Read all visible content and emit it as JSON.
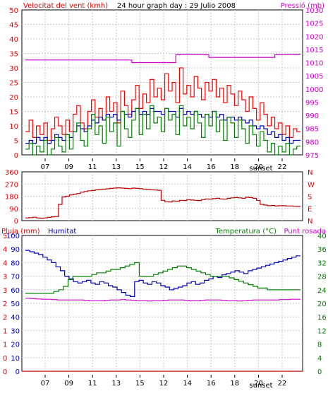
{
  "chart_data": [
    {
      "type": "line",
      "title": "24 hour graph day : 29 Julio 2008",
      "left_label": "Velocitat del vent (kmh)",
      "right_label": "Pressió (mb)",
      "left_ticks": [
        "0",
        "5",
        "10",
        "15",
        "20",
        "25",
        "30",
        "35",
        "40",
        "45",
        "50"
      ],
      "right_ticks": [
        "975",
        "980",
        "985",
        "990",
        "995",
        "1000",
        "1005",
        "1010",
        "1015",
        "1020",
        "1025",
        "1030"
      ],
      "x_ticks": [
        "07",
        "09",
        "11",
        "13",
        "15",
        "12",
        "14",
        "16",
        "18",
        "20",
        "22"
      ],
      "x_annotation": "sunset",
      "left_range": [
        0,
        50
      ],
      "right_range": [
        975,
        1030
      ],
      "colors": {
        "gust": "#ff0000",
        "average": "#0000c0",
        "wind": "#008000",
        "pressure": "#d000d0"
      },
      "series": [
        {
          "key": "gust",
          "values": [
            8,
            12,
            6,
            10,
            7,
            11,
            5,
            9,
            13,
            10,
            7,
            12,
            8,
            14,
            17,
            11,
            9,
            15,
            19,
            13,
            16,
            12,
            20,
            15,
            18,
            11,
            22,
            17,
            14,
            19,
            24,
            16,
            21,
            18,
            26,
            20,
            23,
            19,
            28,
            22,
            25,
            18,
            30,
            21,
            24,
            20,
            27,
            23,
            19,
            25,
            22,
            26,
            20,
            23,
            18,
            24,
            21,
            17,
            22,
            19,
            15,
            20,
            16,
            12,
            18,
            14,
            10,
            13,
            9,
            11,
            7,
            10,
            6,
            9,
            8
          ]
        },
        {
          "key": "average",
          "values": [
            4,
            5,
            4,
            6,
            5,
            6,
            4,
            5,
            7,
            6,
            5,
            7,
            6,
            8,
            10,
            9,
            8,
            10,
            12,
            11,
            13,
            12,
            14,
            13,
            14,
            12,
            15,
            14,
            13,
            15,
            16,
            14,
            15,
            14,
            16,
            15,
            15,
            14,
            16,
            15,
            15,
            13,
            16,
            14,
            15,
            14,
            15,
            14,
            13,
            14,
            13,
            15,
            13,
            14,
            12,
            13,
            13,
            12,
            13,
            12,
            11,
            12,
            10,
            9,
            10,
            9,
            7,
            8,
            6,
            7,
            5,
            6,
            4,
            5,
            5
          ]
        },
        {
          "key": "wind",
          "values": [
            2,
            4,
            0,
            3,
            1,
            5,
            0,
            2,
            6,
            3,
            1,
            7,
            2,
            8,
            11,
            5,
            3,
            9,
            14,
            7,
            10,
            4,
            13,
            8,
            11,
            3,
            15,
            9,
            6,
            12,
            16,
            7,
            14,
            9,
            17,
            11,
            13,
            8,
            16,
            12,
            14,
            7,
            17,
            10,
            13,
            9,
            15,
            11,
            6,
            14,
            10,
            15,
            8,
            12,
            5,
            13,
            11,
            6,
            12,
            9,
            4,
            10,
            7,
            3,
            8,
            5,
            1,
            4,
            0,
            3,
            1,
            4,
            0,
            2,
            3
          ]
        },
        {
          "key": "pressure",
          "values": [
            1011,
            1011,
            1011,
            1011,
            1011,
            1011,
            1011,
            1011,
            1011,
            1011,
            1011,
            1011,
            1011,
            1011,
            1011,
            1011,
            1011,
            1011,
            1011,
            1011,
            1011,
            1011,
            1011,
            1011,
            1011,
            1011,
            1011,
            1011,
            1011,
            1010,
            1010,
            1010,
            1010,
            1010,
            1010,
            1010,
            1010,
            1010,
            1010,
            1010,
            1010,
            1013,
            1013,
            1013,
            1013,
            1013,
            1013,
            1013,
            1013,
            1013,
            1012,
            1012,
            1012,
            1012,
            1012,
            1012,
            1012,
            1012,
            1012,
            1012,
            1012,
            1012,
            1012,
            1012,
            1012,
            1012,
            1012,
            1012,
            1013,
            1013,
            1013,
            1013,
            1013,
            1013,
            1013
          ]
        }
      ]
    },
    {
      "type": "line",
      "left_ticks": [
        "0",
        "90",
        "180",
        "270",
        "360"
      ],
      "right_ticks": [
        "N",
        "E",
        "S",
        "W",
        "N"
      ],
      "range": [
        0,
        360
      ],
      "color": "#c00000",
      "values": [
        20,
        22,
        25,
        20,
        18,
        20,
        24,
        28,
        30,
        120,
        175,
        180,
        190,
        195,
        200,
        210,
        215,
        220,
        222,
        228,
        230,
        232,
        235,
        238,
        240,
        242,
        240,
        238,
        236,
        240,
        238,
        236,
        232,
        230,
        228,
        226,
        224,
        150,
        140,
        138,
        145,
        142,
        150,
        148,
        155,
        152,
        150,
        148,
        155,
        160,
        158,
        162,
        165,
        160,
        158,
        165,
        168,
        170,
        168,
        165,
        172,
        170,
        165,
        150,
        120,
        115,
        110,
        112,
        108,
        110,
        110,
        108,
        108,
        106,
        105
      ]
    },
    {
      "type": "line",
      "left_label": "Pluja (mm)",
      "left_label_2": "Humitat",
      "right_label": "Temperatura (°C)",
      "right_label_2": "Punt rosada",
      "rain_ticks": [
        "0",
        "0",
        "1",
        "1",
        "2",
        "2",
        "3",
        "3",
        "4",
        "4",
        "5"
      ],
      "humidity_ticks": [
        "0",
        "10",
        "20",
        "30",
        "40",
        "50",
        "60",
        "70",
        "80",
        "90",
        "100"
      ],
      "temp_ticks": [
        "0",
        "4",
        "8",
        "12",
        "16",
        "20",
        "24",
        "28",
        "32",
        "36",
        "40"
      ],
      "humidity_range": [
        0,
        100
      ],
      "temp_range": [
        0,
        40
      ],
      "colors": {
        "humidity": "#0000c0",
        "temperature": "#008000",
        "dewpoint": "#d000d0",
        "rain": "#c00000"
      },
      "series": [
        {
          "key": "humidity",
          "values": [
            89,
            88,
            87,
            86,
            84,
            82,
            80,
            77,
            74,
            70,
            68,
            66,
            65,
            66,
            67,
            65,
            64,
            66,
            65,
            63,
            62,
            60,
            58,
            56,
            55,
            66,
            67,
            65,
            64,
            66,
            65,
            63,
            62,
            60,
            61,
            62,
            63,
            65,
            66,
            64,
            65,
            67,
            68,
            70,
            69,
            71,
            72,
            73,
            74,
            73,
            72,
            74,
            75,
            76,
            77,
            78,
            79,
            80,
            81,
            82,
            83,
            84,
            85
          ]
        },
        {
          "key": "temperature",
          "values": [
            23,
            23,
            23,
            23,
            23,
            23,
            23.5,
            24,
            25,
            27,
            28,
            28,
            28,
            28,
            28.5,
            29,
            29,
            29.5,
            30,
            30,
            30.5,
            31,
            31.5,
            32,
            28,
            28,
            28,
            28.5,
            29,
            29.5,
            30,
            30.5,
            31,
            31,
            30.5,
            30,
            29.5,
            29,
            28.5,
            28,
            28,
            28,
            28,
            27.5,
            27,
            26.5,
            26,
            25.5,
            25,
            24.5,
            24.5,
            24,
            24,
            24,
            24,
            24,
            24,
            24
          ]
        },
        {
          "key": "dewpoint",
          "values": [
            21.5,
            21.4,
            21.3,
            21.2,
            21.2,
            21.1,
            21,
            21,
            21,
            21,
            21,
            20.9,
            20.8,
            20.8,
            20.8,
            20.9,
            21,
            21,
            21.1,
            21,
            20.9,
            20.8,
            20.8,
            20.7,
            20.8,
            20.8,
            20.9,
            21,
            21,
            21,
            20.9,
            20.8,
            20.8,
            20.9,
            21,
            21,
            21,
            20.9,
            20.8,
            20.8,
            20.7,
            20.8,
            20.9,
            21,
            21,
            21,
            21,
            21,
            21.1,
            21.1,
            21.2,
            21.2
          ]
        },
        {
          "key": "rain",
          "values": [
            0,
            0,
            0,
            0,
            0,
            0,
            0,
            0,
            0,
            0,
            0
          ]
        }
      ],
      "x_ticks": [
        "07",
        "09",
        "11",
        "13",
        "15",
        "12",
        "14",
        "16",
        "18",
        "20",
        "22"
      ],
      "x_annotation": "sunset"
    }
  ]
}
